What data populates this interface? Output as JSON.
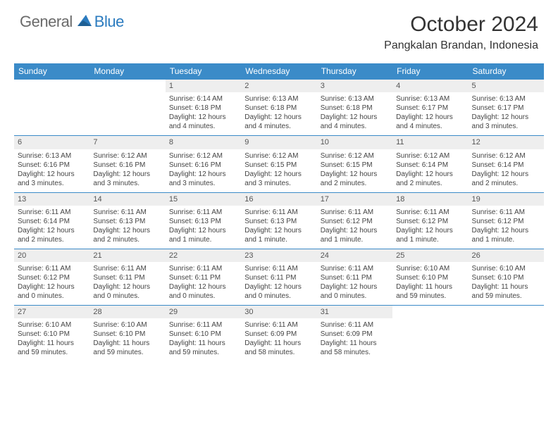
{
  "brand": {
    "text1": "General",
    "text2": "Blue",
    "sail_color": "#2b7bbf"
  },
  "title": "October 2024",
  "location": "Pangkalan Brandan, Indonesia",
  "colors": {
    "header_bg": "#3b8bc8",
    "header_text": "#ffffff",
    "daynum_bg": "#eeeeee",
    "border": "#3b8bc8"
  },
  "weekdays": [
    "Sunday",
    "Monday",
    "Tuesday",
    "Wednesday",
    "Thursday",
    "Friday",
    "Saturday"
  ],
  "weeks": [
    [
      {
        "n": "",
        "sr": "",
        "ss": "",
        "dl": "",
        "dl2": ""
      },
      {
        "n": "",
        "sr": "",
        "ss": "",
        "dl": "",
        "dl2": ""
      },
      {
        "n": "1",
        "sr": "Sunrise: 6:14 AM",
        "ss": "Sunset: 6:18 PM",
        "dl": "Daylight: 12 hours",
        "dl2": "and 4 minutes."
      },
      {
        "n": "2",
        "sr": "Sunrise: 6:13 AM",
        "ss": "Sunset: 6:18 PM",
        "dl": "Daylight: 12 hours",
        "dl2": "and 4 minutes."
      },
      {
        "n": "3",
        "sr": "Sunrise: 6:13 AM",
        "ss": "Sunset: 6:18 PM",
        "dl": "Daylight: 12 hours",
        "dl2": "and 4 minutes."
      },
      {
        "n": "4",
        "sr": "Sunrise: 6:13 AM",
        "ss": "Sunset: 6:17 PM",
        "dl": "Daylight: 12 hours",
        "dl2": "and 4 minutes."
      },
      {
        "n": "5",
        "sr": "Sunrise: 6:13 AM",
        "ss": "Sunset: 6:17 PM",
        "dl": "Daylight: 12 hours",
        "dl2": "and 3 minutes."
      }
    ],
    [
      {
        "n": "6",
        "sr": "Sunrise: 6:13 AM",
        "ss": "Sunset: 6:16 PM",
        "dl": "Daylight: 12 hours",
        "dl2": "and 3 minutes."
      },
      {
        "n": "7",
        "sr": "Sunrise: 6:12 AM",
        "ss": "Sunset: 6:16 PM",
        "dl": "Daylight: 12 hours",
        "dl2": "and 3 minutes."
      },
      {
        "n": "8",
        "sr": "Sunrise: 6:12 AM",
        "ss": "Sunset: 6:16 PM",
        "dl": "Daylight: 12 hours",
        "dl2": "and 3 minutes."
      },
      {
        "n": "9",
        "sr": "Sunrise: 6:12 AM",
        "ss": "Sunset: 6:15 PM",
        "dl": "Daylight: 12 hours",
        "dl2": "and 3 minutes."
      },
      {
        "n": "10",
        "sr": "Sunrise: 6:12 AM",
        "ss": "Sunset: 6:15 PM",
        "dl": "Daylight: 12 hours",
        "dl2": "and 2 minutes."
      },
      {
        "n": "11",
        "sr": "Sunrise: 6:12 AM",
        "ss": "Sunset: 6:14 PM",
        "dl": "Daylight: 12 hours",
        "dl2": "and 2 minutes."
      },
      {
        "n": "12",
        "sr": "Sunrise: 6:12 AM",
        "ss": "Sunset: 6:14 PM",
        "dl": "Daylight: 12 hours",
        "dl2": "and 2 minutes."
      }
    ],
    [
      {
        "n": "13",
        "sr": "Sunrise: 6:11 AM",
        "ss": "Sunset: 6:14 PM",
        "dl": "Daylight: 12 hours",
        "dl2": "and 2 minutes."
      },
      {
        "n": "14",
        "sr": "Sunrise: 6:11 AM",
        "ss": "Sunset: 6:13 PM",
        "dl": "Daylight: 12 hours",
        "dl2": "and 2 minutes."
      },
      {
        "n": "15",
        "sr": "Sunrise: 6:11 AM",
        "ss": "Sunset: 6:13 PM",
        "dl": "Daylight: 12 hours",
        "dl2": "and 1 minute."
      },
      {
        "n": "16",
        "sr": "Sunrise: 6:11 AM",
        "ss": "Sunset: 6:13 PM",
        "dl": "Daylight: 12 hours",
        "dl2": "and 1 minute."
      },
      {
        "n": "17",
        "sr": "Sunrise: 6:11 AM",
        "ss": "Sunset: 6:12 PM",
        "dl": "Daylight: 12 hours",
        "dl2": "and 1 minute."
      },
      {
        "n": "18",
        "sr": "Sunrise: 6:11 AM",
        "ss": "Sunset: 6:12 PM",
        "dl": "Daylight: 12 hours",
        "dl2": "and 1 minute."
      },
      {
        "n": "19",
        "sr": "Sunrise: 6:11 AM",
        "ss": "Sunset: 6:12 PM",
        "dl": "Daylight: 12 hours",
        "dl2": "and 1 minute."
      }
    ],
    [
      {
        "n": "20",
        "sr": "Sunrise: 6:11 AM",
        "ss": "Sunset: 6:12 PM",
        "dl": "Daylight: 12 hours",
        "dl2": "and 0 minutes."
      },
      {
        "n": "21",
        "sr": "Sunrise: 6:11 AM",
        "ss": "Sunset: 6:11 PM",
        "dl": "Daylight: 12 hours",
        "dl2": "and 0 minutes."
      },
      {
        "n": "22",
        "sr": "Sunrise: 6:11 AM",
        "ss": "Sunset: 6:11 PM",
        "dl": "Daylight: 12 hours",
        "dl2": "and 0 minutes."
      },
      {
        "n": "23",
        "sr": "Sunrise: 6:11 AM",
        "ss": "Sunset: 6:11 PM",
        "dl": "Daylight: 12 hours",
        "dl2": "and 0 minutes."
      },
      {
        "n": "24",
        "sr": "Sunrise: 6:11 AM",
        "ss": "Sunset: 6:11 PM",
        "dl": "Daylight: 12 hours",
        "dl2": "and 0 minutes."
      },
      {
        "n": "25",
        "sr": "Sunrise: 6:10 AM",
        "ss": "Sunset: 6:10 PM",
        "dl": "Daylight: 11 hours",
        "dl2": "and 59 minutes."
      },
      {
        "n": "26",
        "sr": "Sunrise: 6:10 AM",
        "ss": "Sunset: 6:10 PM",
        "dl": "Daylight: 11 hours",
        "dl2": "and 59 minutes."
      }
    ],
    [
      {
        "n": "27",
        "sr": "Sunrise: 6:10 AM",
        "ss": "Sunset: 6:10 PM",
        "dl": "Daylight: 11 hours",
        "dl2": "and 59 minutes."
      },
      {
        "n": "28",
        "sr": "Sunrise: 6:10 AM",
        "ss": "Sunset: 6:10 PM",
        "dl": "Daylight: 11 hours",
        "dl2": "and 59 minutes."
      },
      {
        "n": "29",
        "sr": "Sunrise: 6:11 AM",
        "ss": "Sunset: 6:10 PM",
        "dl": "Daylight: 11 hours",
        "dl2": "and 59 minutes."
      },
      {
        "n": "30",
        "sr": "Sunrise: 6:11 AM",
        "ss": "Sunset: 6:09 PM",
        "dl": "Daylight: 11 hours",
        "dl2": "and 58 minutes."
      },
      {
        "n": "31",
        "sr": "Sunrise: 6:11 AM",
        "ss": "Sunset: 6:09 PM",
        "dl": "Daylight: 11 hours",
        "dl2": "and 58 minutes."
      },
      {
        "n": "",
        "sr": "",
        "ss": "",
        "dl": "",
        "dl2": ""
      },
      {
        "n": "",
        "sr": "",
        "ss": "",
        "dl": "",
        "dl2": ""
      }
    ]
  ]
}
